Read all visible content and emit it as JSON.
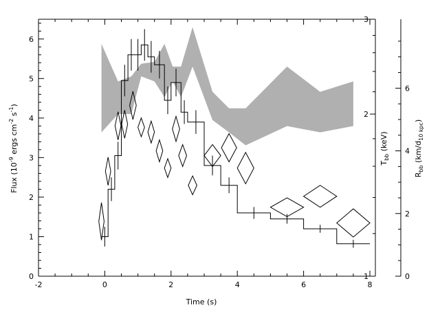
{
  "chart_data": {
    "type": "scatter",
    "xlabel": "Time (s)",
    "xlim": [
      -2,
      8
    ],
    "xticks": [
      "-2",
      "0",
      "2",
      "4",
      "6",
      "8"
    ],
    "left_axis": {
      "label": "Flux (10^-9 ergs cm^-2 s^-1)",
      "label_parts": [
        "Flux (10",
        "-9",
        " ergs cm",
        "-2",
        " s",
        "-1",
        ")"
      ],
      "range": [
        0,
        6.5
      ],
      "ticks": [
        "0",
        "1",
        "2",
        "3",
        "4",
        "5",
        "6"
      ]
    },
    "mid_right_axis": {
      "label": "T_bb (keV)",
      "label_parts": [
        "T",
        "bb",
        " (keV)"
      ],
      "scale": "log",
      "range": [
        1,
        3
      ],
      "ticks": [
        "1",
        "2",
        "3"
      ]
    },
    "far_right_axis": {
      "label": "R_bb (km/d_10 kpc)",
      "label_parts": [
        "R",
        "bb",
        " (km/d",
        "10 kpc",
        ")"
      ],
      "range": [
        0,
        8.2
      ],
      "ticks": [
        "0",
        "2",
        "4",
        "6"
      ]
    },
    "series": [
      {
        "kind": "flux_histogram",
        "bins": [
          {
            "x0": -0.1,
            "x1": 0.1,
            "y": 1.0,
            "err": 0.25
          },
          {
            "x0": 0.1,
            "x1": 0.3,
            "y": 2.2,
            "err": 0.3
          },
          {
            "x0": 0.3,
            "x1": 0.5,
            "y": 3.05,
            "err": 0.35
          },
          {
            "x0": 0.5,
            "x1": 0.7,
            "y": 4.95,
            "err": 0.4
          },
          {
            "x0": 0.7,
            "x1": 0.9,
            "y": 5.6,
            "err": 0.4
          },
          {
            "x0": 0.9,
            "x1": 1.1,
            "y": 5.6,
            "err": 0.4
          },
          {
            "x0": 1.1,
            "x1": 1.3,
            "y": 5.85,
            "err": 0.4
          },
          {
            "x0": 1.3,
            "x1": 1.5,
            "y": 5.55,
            "err": 0.4
          },
          {
            "x0": 1.5,
            "x1": 1.8,
            "y": 5.35,
            "err": 0.35
          },
          {
            "x0": 1.8,
            "x1": 2.0,
            "y": 4.45,
            "err": 0.35
          },
          {
            "x0": 2.0,
            "x1": 2.3,
            "y": 4.9,
            "err": 0.35
          },
          {
            "x0": 2.3,
            "x1": 2.5,
            "y": 4.15,
            "err": 0.3
          },
          {
            "x0": 2.5,
            "x1": 3.0,
            "y": 3.9,
            "err": 0.3
          },
          {
            "x0": 3.0,
            "x1": 3.5,
            "y": 2.8,
            "err": 0.25
          },
          {
            "x0": 3.5,
            "x1": 4.0,
            "y": 2.3,
            "err": 0.2
          },
          {
            "x0": 4.0,
            "x1": 5.0,
            "y": 1.6,
            "err": 0.15
          },
          {
            "x0": 5.0,
            "x1": 6.0,
            "y": 1.45,
            "err": 0.12
          },
          {
            "x0": 6.0,
            "x1": 7.0,
            "y": 1.2,
            "err": 0.1
          },
          {
            "x0": 7.0,
            "x1": 8.0,
            "y": 0.82,
            "err": 0.1
          }
        ]
      },
      {
        "kind": "temperature_band",
        "axis": "T_bb",
        "points": [
          {
            "x": -0.1,
            "low": 1.85,
            "high": 2.7
          },
          {
            "x": 0.4,
            "low": 2.0,
            "high": 2.3
          },
          {
            "x": 0.8,
            "low": 2.0,
            "high": 2.35
          },
          {
            "x": 1.1,
            "low": 2.35,
            "high": 2.48
          },
          {
            "x": 1.5,
            "low": 2.3,
            "high": 2.5
          },
          {
            "x": 1.8,
            "low": 2.15,
            "high": 2.7
          },
          {
            "x": 2.05,
            "low": 2.3,
            "high": 2.45
          },
          {
            "x": 2.3,
            "low": 2.15,
            "high": 2.45
          },
          {
            "x": 2.65,
            "low": 2.45,
            "high": 2.9
          },
          {
            "x": 3.25,
            "low": 1.95,
            "high": 2.2
          },
          {
            "x": 3.75,
            "low": 1.85,
            "high": 2.05
          },
          {
            "x": 4.25,
            "low": 1.75,
            "high": 2.05
          },
          {
            "x": 5.5,
            "low": 1.9,
            "high": 2.45
          },
          {
            "x": 6.5,
            "low": 1.85,
            "high": 2.2
          },
          {
            "x": 7.5,
            "low": 1.9,
            "high": 2.3
          }
        ]
      },
      {
        "kind": "radius_diamonds",
        "axis": "R_bb",
        "points": [
          {
            "x": -0.1,
            "y": 1.75,
            "err": 0.6,
            "hw": 0.08
          },
          {
            "x": 0.1,
            "y": 3.35,
            "err": 0.45,
            "hw": 0.08
          },
          {
            "x": 0.4,
            "y": 4.8,
            "err": 0.45,
            "hw": 0.09
          },
          {
            "x": 0.6,
            "y": 4.85,
            "err": 0.45,
            "hw": 0.09
          },
          {
            "x": 0.85,
            "y": 5.45,
            "err": 0.45,
            "hw": 0.1
          },
          {
            "x": 1.1,
            "y": 4.75,
            "err": 0.3,
            "hw": 0.1
          },
          {
            "x": 1.4,
            "y": 4.6,
            "err": 0.35,
            "hw": 0.1
          },
          {
            "x": 1.65,
            "y": 4.0,
            "err": 0.35,
            "hw": 0.1
          },
          {
            "x": 1.9,
            "y": 3.45,
            "err": 0.3,
            "hw": 0.1
          },
          {
            "x": 2.15,
            "y": 4.7,
            "err": 0.4,
            "hw": 0.11
          },
          {
            "x": 2.35,
            "y": 3.85,
            "err": 0.35,
            "hw": 0.12
          },
          {
            "x": 2.65,
            "y": 2.9,
            "err": 0.3,
            "hw": 0.13
          },
          {
            "x": 3.25,
            "y": 3.85,
            "err": 0.35,
            "hw": 0.25
          },
          {
            "x": 3.75,
            "y": 4.1,
            "err": 0.45,
            "hw": 0.23
          },
          {
            "x": 4.25,
            "y": 3.45,
            "err": 0.5,
            "hw": 0.25
          },
          {
            "x": 5.5,
            "y": 2.2,
            "err": 0.3,
            "hw": 0.5
          },
          {
            "x": 6.5,
            "y": 2.55,
            "err": 0.35,
            "hw": 0.5
          },
          {
            "x": 7.5,
            "y": 1.7,
            "err": 0.45,
            "hw": 0.5
          }
        ]
      }
    ],
    "colors": {
      "band": "#b0b0b0",
      "line": "#000000"
    }
  }
}
